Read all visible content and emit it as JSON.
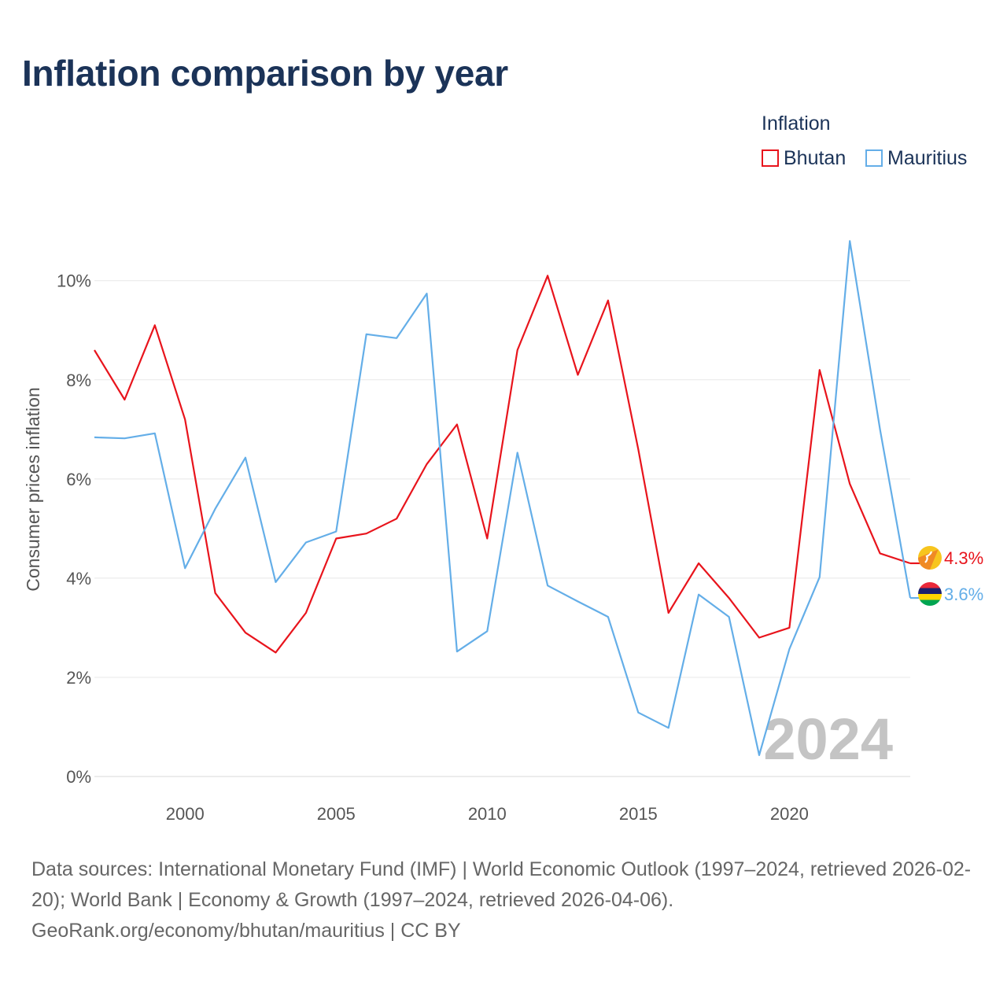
{
  "title": "Inflation comparison by year",
  "legend": {
    "title": "Inflation",
    "items": [
      {
        "label": "Bhutan",
        "color": "#e8141c"
      },
      {
        "label": "Mauritius",
        "color": "#64aee8"
      }
    ]
  },
  "chart_data": {
    "type": "line",
    "title": "Inflation comparison by year",
    "xlabel": "",
    "ylabel": "Consumer prices inflation",
    "xlim": [
      1997,
      2024
    ],
    "ylim": [
      0,
      10.9
    ],
    "yticks": [
      0,
      2,
      4,
      6,
      8,
      10
    ],
    "ytick_labels": [
      "0%",
      "2%",
      "4%",
      "6%",
      "8%",
      "10%"
    ],
    "xticks": [
      2000,
      2005,
      2010,
      2015,
      2020
    ],
    "xtick_labels": [
      "2000",
      "2005",
      "2010",
      "2015",
      "2020"
    ],
    "x": [
      1997,
      1998,
      1999,
      2000,
      2001,
      2002,
      2003,
      2004,
      2005,
      2006,
      2007,
      2008,
      2009,
      2010,
      2011,
      2012,
      2013,
      2014,
      2015,
      2016,
      2017,
      2018,
      2019,
      2020,
      2021,
      2022,
      2023,
      2024
    ],
    "series": [
      {
        "name": "Bhutan",
        "color": "#e8141c",
        "values": [
          8.6,
          7.6,
          9.1,
          7.2,
          3.7,
          2.9,
          2.5,
          3.3,
          4.8,
          4.9,
          5.2,
          6.3,
          7.1,
          4.8,
          8.6,
          10.1,
          8.1,
          9.6,
          6.6,
          3.3,
          4.3,
          3.6,
          2.8,
          3.0,
          8.2,
          5.9,
          4.5,
          4.3
        ],
        "end_label": "4.3%"
      },
      {
        "name": "Mauritius",
        "color": "#64aee8",
        "values": [
          6.84,
          6.82,
          6.92,
          4.2,
          5.4,
          6.43,
          3.92,
          4.72,
          4.94,
          8.92,
          8.84,
          9.74,
          2.52,
          2.93,
          6.53,
          3.85,
          3.53,
          3.22,
          1.29,
          0.98,
          3.67,
          3.22,
          0.43,
          2.57,
          4.02,
          10.8,
          7.0,
          3.6
        ],
        "end_label": "3.6%"
      }
    ],
    "grid": true,
    "watermark": "2024"
  },
  "footer": {
    "line1": "Data sources: International Monetary Fund (IMF) | World Economic Outlook (1997–2024, retrieved 2026-02-20); World Bank | Economy & Growth (1997–2024, retrieved 2026-04-06).",
    "line2": "GeoRank.org/economy/bhutan/mauritius | CC BY"
  }
}
